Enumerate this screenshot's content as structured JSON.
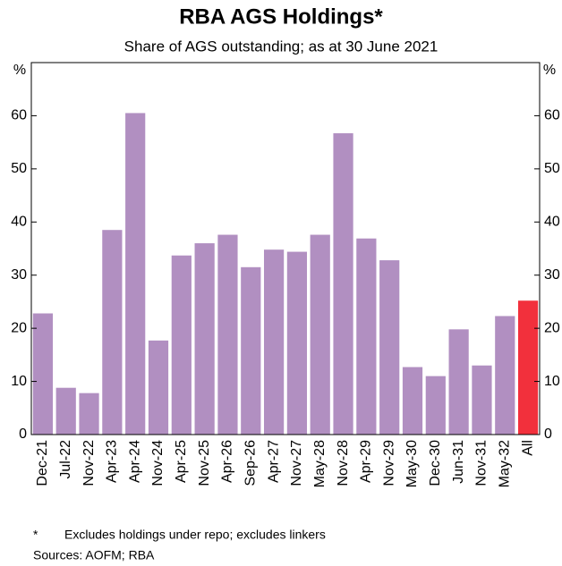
{
  "chart_data": {
    "type": "bar",
    "title": "RBA AGS Holdings*",
    "subtitle": "Share of AGS outstanding; as at 30 June 2021",
    "y_unit": "%",
    "categories": [
      "Dec-21",
      "Jul-22",
      "Nov-22",
      "Apr-23",
      "Apr-24",
      "Nov-24",
      "Apr-25",
      "Nov-25",
      "Apr-26",
      "Sep-26",
      "Apr-27",
      "Nov-27",
      "May-28",
      "Nov-28",
      "Apr-29",
      "Nov-29",
      "May-30",
      "Dec-30",
      "Jun-31",
      "Nov-31",
      "May-32",
      "All"
    ],
    "values": [
      22.8,
      8.8,
      7.8,
      38.5,
      60.5,
      17.7,
      33.7,
      36.0,
      37.6,
      31.5,
      34.8,
      34.4,
      37.6,
      56.7,
      36.9,
      32.8,
      12.7,
      11.0,
      19.8,
      13.0,
      22.3,
      25.2
    ],
    "colors": [
      "#b18fc1",
      "#b18fc1",
      "#b18fc1",
      "#b18fc1",
      "#b18fc1",
      "#b18fc1",
      "#b18fc1",
      "#b18fc1",
      "#b18fc1",
      "#b18fc1",
      "#b18fc1",
      "#b18fc1",
      "#b18fc1",
      "#b18fc1",
      "#b18fc1",
      "#b18fc1",
      "#b18fc1",
      "#b18fc1",
      "#b18fc1",
      "#b18fc1",
      "#b18fc1",
      "#f2303c"
    ],
    "ylim": [
      0,
      70
    ],
    "yticks": [
      0,
      10,
      20,
      30,
      40,
      50,
      60
    ],
    "footnote_marker": "*",
    "footnote": "Excludes holdings under repo; excludes linkers",
    "sources": "Sources: AOFM; RBA"
  }
}
